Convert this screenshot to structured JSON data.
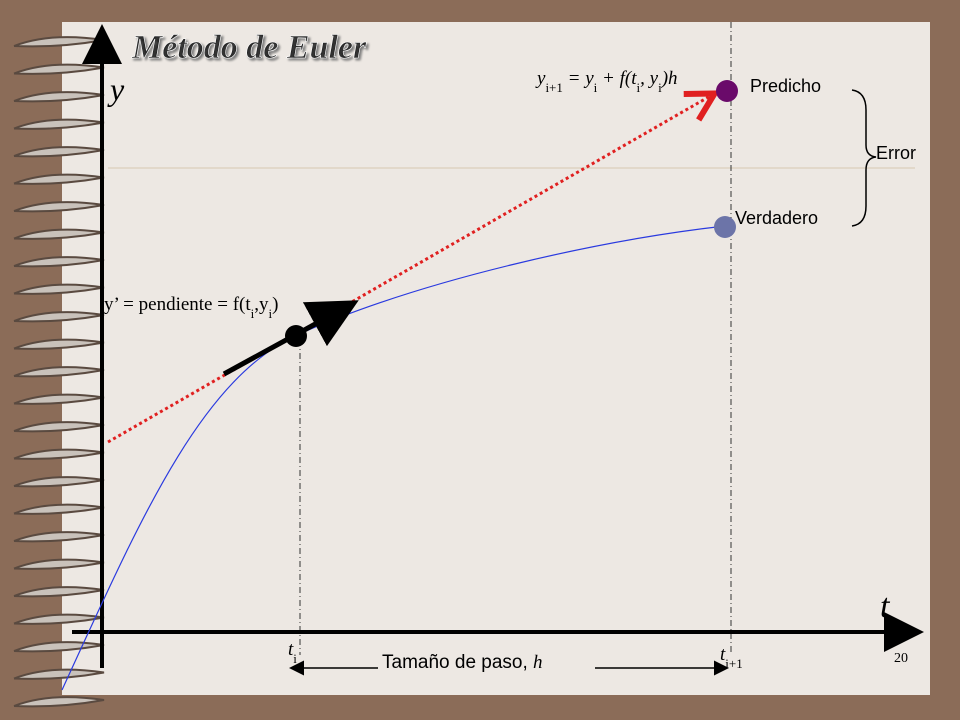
{
  "title": "Método de Euler",
  "axes": {
    "y_label": "y",
    "x_label": "t"
  },
  "formula": [
    "y",
    "i+1",
    " = y",
    "i",
    " + f(t",
    "i",
    ", y",
    "i",
    ")h"
  ],
  "slope_label": [
    "y’ = pendiente = f(t",
    "i",
    ",y",
    "i",
    ")"
  ],
  "points": {
    "predicted": "Predicho",
    "true": "Verdadero",
    "error": "Error"
  },
  "x_marks": {
    "t_i": [
      "t",
      "i"
    ],
    "t_i1": [
      "t",
      "i+1"
    ]
  },
  "step": {
    "label": "Tamaño de paso, ",
    "symbol": "h"
  },
  "page_number": "20"
}
